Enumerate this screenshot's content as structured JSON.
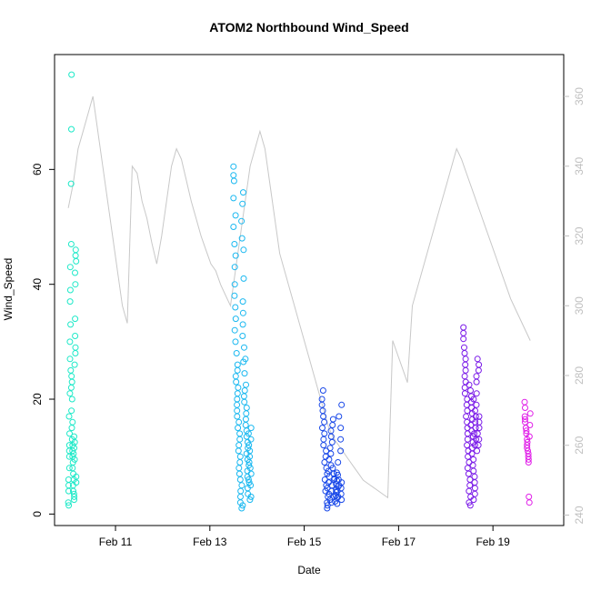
{
  "chart_data": {
    "type": "scatter",
    "title": "ATOM2 Northbound Wind_Speed",
    "xlabel": "Date",
    "ylabel": "Wind_Speed",
    "xlim": [
      "2019-02-09T17:00",
      "2019-02-20T12:00"
    ],
    "ylim": [
      -2,
      80
    ],
    "y2lim": [
      237,
      372
    ],
    "grid": false,
    "legend": "none",
    "x_ticks": [
      {
        "date": "2019-02-11",
        "label": "Feb 11"
      },
      {
        "date": "2019-02-13",
        "label": "Feb 13"
      },
      {
        "date": "2019-02-15",
        "label": "Feb 15"
      },
      {
        "date": "2019-02-17",
        "label": "Feb 17"
      },
      {
        "date": "2019-02-19",
        "label": "Feb 19"
      }
    ],
    "y_ticks": [
      "0",
      "20",
      "40",
      "60"
    ],
    "y2_ticks": [
      "240",
      "260",
      "280",
      "300",
      "320",
      "340",
      "360"
    ],
    "clusters": [
      {
        "start": "2019-02-10T00:00",
        "end": "2019-02-10T04:00",
        "color": "#1de9c8",
        "values": [
          2,
          1.5,
          4,
          5,
          6,
          8,
          10,
          11,
          12,
          14,
          17,
          21,
          27,
          30,
          33,
          37,
          39,
          43,
          47,
          57.5,
          67,
          76.5,
          25,
          24,
          23,
          22,
          20,
          18,
          16,
          15,
          13,
          12,
          11,
          10,
          9,
          8,
          7,
          6,
          5,
          4,
          3.5,
          3,
          2.5,
          10.5,
          11.5,
          9.5,
          12.5,
          13.5,
          26,
          28,
          29,
          31,
          34,
          40,
          42,
          44,
          45,
          46,
          6.5,
          5.5
        ]
      },
      {
        "start": "2019-02-13T12:00",
        "end": "2019-02-13T21:00",
        "color": "#1ab8f0",
        "values": [
          60.5,
          59,
          58,
          55,
          52,
          50,
          47,
          45,
          43,
          40,
          38,
          36,
          34,
          32,
          30,
          28,
          26,
          25,
          24,
          23,
          22,
          21,
          20,
          19,
          18,
          17,
          16,
          15,
          14,
          13,
          12,
          11,
          10,
          9,
          8,
          7,
          6,
          5,
          4,
          3,
          2,
          1.5,
          1,
          54,
          56,
          51,
          48,
          46,
          41,
          37,
          35,
          33,
          31,
          29,
          27,
          26.5,
          24.5,
          22.5,
          21.5,
          20.5,
          19.5,
          18.5,
          17.5,
          16.5,
          15.5,
          14.5,
          13.5,
          12.5,
          11.5,
          10.5,
          9.5,
          8.5,
          7.5,
          6.5,
          5.5,
          4.5,
          3.5,
          2.5,
          12,
          10,
          8,
          6,
          14,
          11,
          9,
          7,
          5,
          13,
          15,
          3
        ]
      },
      {
        "start": "2019-02-15T09:00",
        "end": "2019-02-15T19:00",
        "color": "#1948e8",
        "values": [
          21.5,
          20,
          19,
          18,
          17,
          16,
          15,
          14,
          13,
          12,
          11,
          10,
          9,
          8,
          7,
          6,
          5,
          4,
          3,
          2,
          1.5,
          1,
          6.5,
          5.5,
          4.5,
          3.5,
          2.5,
          7.5,
          8.5,
          9.5,
          10.5,
          11.5,
          12.5,
          13.5,
          14.5,
          15.5,
          16.5,
          2,
          3,
          4,
          5,
          6,
          7,
          8,
          2.2,
          3.2,
          4.2,
          5.2,
          6.2,
          7.2,
          1.8,
          2.8,
          3.8,
          4.8,
          5.8,
          6.8,
          3,
          4,
          5,
          6,
          9,
          11,
          13,
          15,
          17,
          19,
          2.5,
          3.5,
          4.5,
          5.5
        ]
      },
      {
        "start": "2019-02-18T09:00",
        "end": "2019-02-18T17:00",
        "color": "#7a1ae8",
        "values": [
          32.5,
          31.5,
          30.5,
          29,
          28,
          27,
          26,
          25,
          24,
          23,
          22,
          21,
          20,
          19,
          18,
          17,
          16,
          15,
          14,
          13,
          12,
          11,
          10,
          9,
          8,
          7,
          6,
          5,
          4,
          3,
          2,
          1.5,
          22.5,
          21.5,
          20.5,
          19.5,
          18.5,
          17.5,
          16.5,
          15.5,
          14.5,
          13.5,
          12.5,
          11.5,
          10.5,
          9.5,
          8.5,
          7.5,
          6.5,
          5.5,
          4.5,
          3.5,
          2.5,
          20,
          18,
          16,
          14,
          12,
          21,
          19,
          17,
          15,
          13,
          11,
          23,
          24,
          25,
          26,
          27,
          12,
          13,
          14,
          15,
          16,
          17
        ]
      },
      {
        "start": "2019-02-19T16:00",
        "end": "2019-02-19T19:00",
        "color": "#e01ee8",
        "values": [
          19.5,
          18.5,
          17,
          16.5,
          16,
          15,
          14.5,
          14,
          13,
          12.5,
          12,
          11.5,
          11,
          10.5,
          10,
          9.5,
          9,
          3,
          2,
          13.5,
          15.5,
          17.5
        ]
      }
    ],
    "direction_series": {
      "color": "#c8c8c8",
      "axis": "right",
      "values": [
        328,
        335,
        345,
        350,
        355,
        360,
        350,
        340,
        330,
        320,
        310,
        300,
        295,
        340,
        338,
        330,
        325,
        318,
        312,
        320,
        330,
        340,
        345,
        342,
        336,
        330,
        325,
        320,
        316,
        312,
        310,
        306,
        303,
        300,
        310,
        320,
        330,
        340,
        345,
        350,
        345,
        335,
        325,
        315,
        310,
        305,
        300,
        295,
        290,
        285,
        280,
        275,
        270,
        265,
        262,
        260,
        258,
        256,
        254,
        252,
        250,
        249,
        248,
        247,
        246,
        245,
        290,
        286,
        282,
        278,
        300,
        305,
        310,
        315,
        320,
        325,
        330,
        335,
        340,
        345,
        342,
        338,
        334,
        330,
        326,
        322,
        318,
        314,
        310,
        306,
        302,
        299,
        296,
        293,
        290
      ]
    }
  }
}
